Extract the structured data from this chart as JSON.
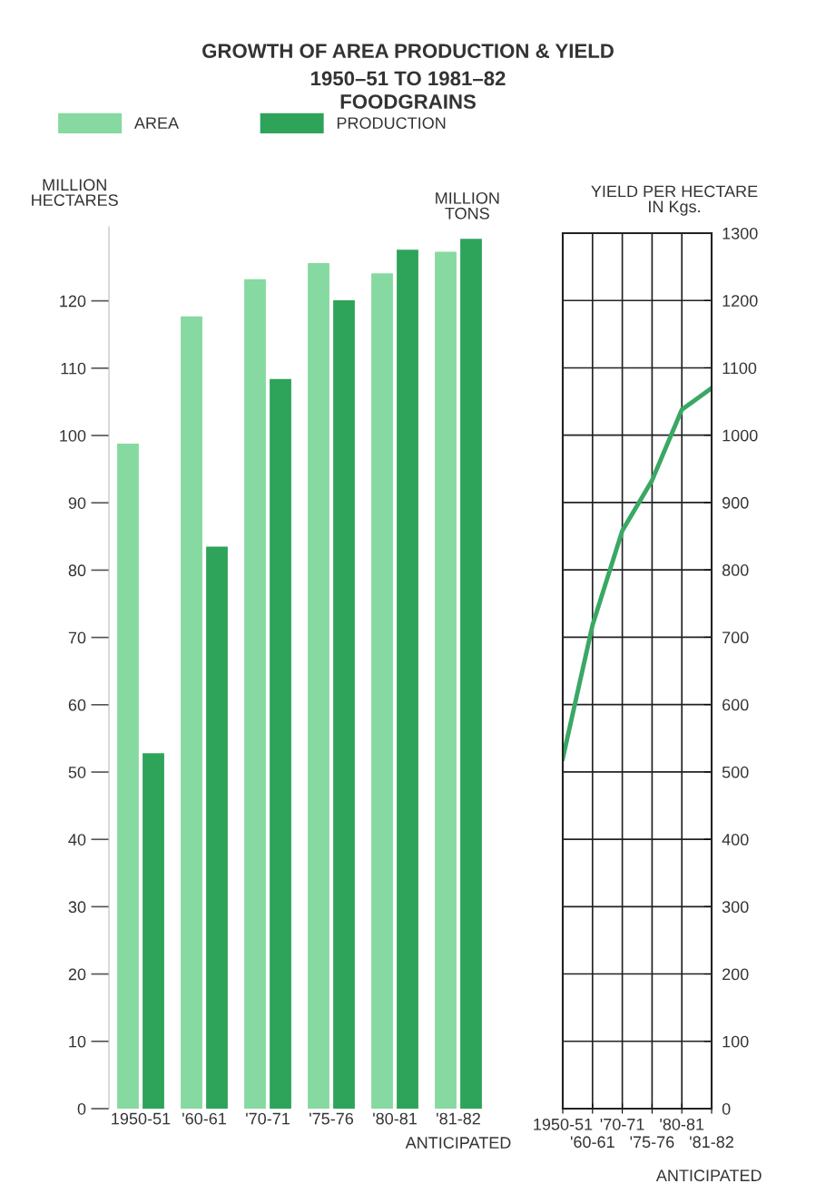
{
  "chart_data": [
    {
      "type": "bar",
      "title": "GROWTH OF AREA PRODUCTION & YIELD",
      "subtitle": "1950–51 TO 1981–82\nFOODGRAINS",
      "ylabel": "MILLION\nHECTARES",
      "categories": [
        "1950-51",
        "'60-61",
        "'70-71",
        "'75-76",
        "'80-81",
        "'81-82"
      ],
      "series": [
        {
          "name": "AREA",
          "color": "#86d9a0",
          "values": [
            98.8,
            117.7,
            123.2,
            125.6,
            124.1,
            127.3
          ]
        },
        {
          "name": "PRODUCTION",
          "color": "#2ea35a",
          "values": [
            52.8,
            83.5,
            108.4,
            120.1,
            127.6,
            129.2
          ]
        }
      ],
      "ylim": [
        0,
        131
      ],
      "yticks": [
        0,
        10,
        20,
        30,
        40,
        50,
        60,
        70,
        80,
        90,
        100,
        110,
        120
      ],
      "legend": "top left",
      "grid": false,
      "annotations": [
        "MILLION\nTONS",
        "ANTICIPATED"
      ]
    },
    {
      "type": "line",
      "ylabel": "YIELD PER HECTARE\nIN Kgs.",
      "categories": [
        "1950-51",
        "'60-61",
        "'70-71",
        "'75-76",
        "'80-81",
        "'81-82"
      ],
      "series": [
        {
          "color": "#3aa864",
          "values": [
            520,
            718,
            858,
            933,
            1038,
            1070
          ]
        }
      ],
      "ylim": [
        0,
        1300
      ],
      "yticks": [
        0,
        100,
        200,
        300,
        400,
        500,
        600,
        700,
        800,
        900,
        1000,
        1100,
        1200,
        1300
      ],
      "grid": true,
      "marker": "none",
      "line_style": "solid",
      "annotations": [
        "ANTICIPATED"
      ]
    }
  ]
}
